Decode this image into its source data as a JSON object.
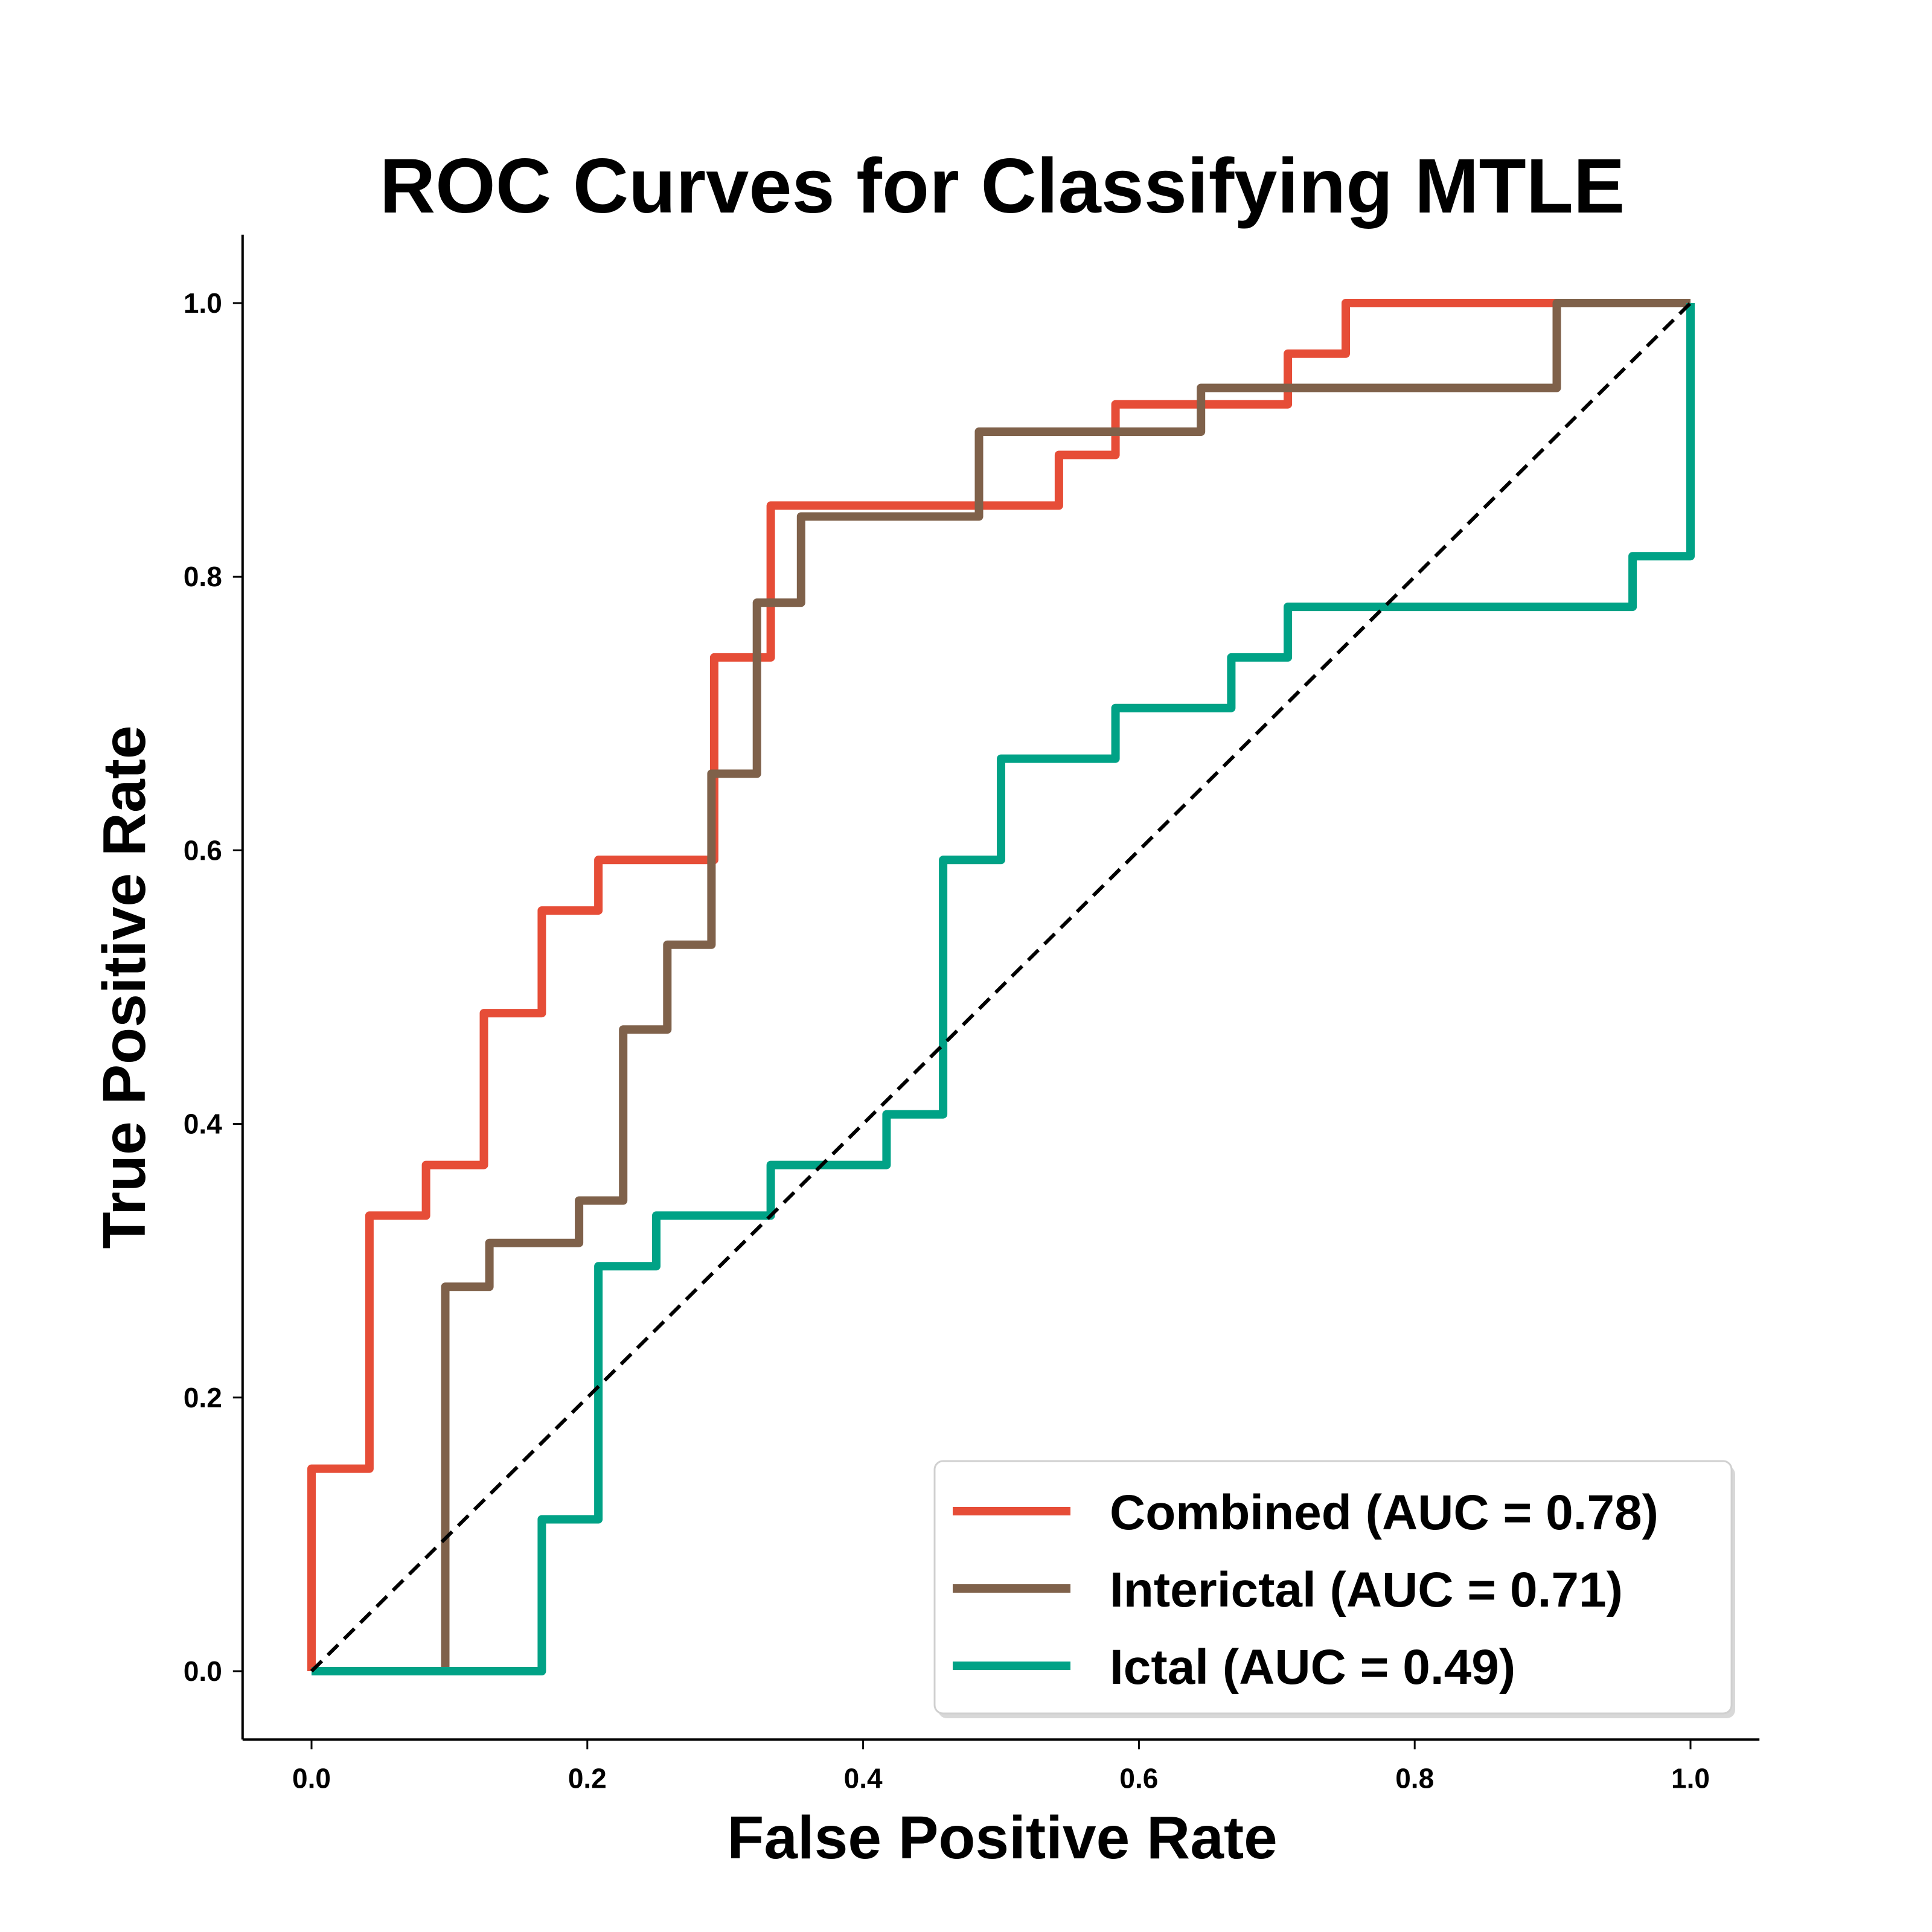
{
  "chart_data": {
    "type": "line",
    "title": "ROC Curves for Classifying MTLE",
    "xlabel": "False Positive Rate",
    "ylabel": "True Positive Rate",
    "xlim": [
      -0.05,
      1.05
    ],
    "ylim": [
      -0.05,
      1.05
    ],
    "xticks": [
      0.0,
      0.2,
      0.4,
      0.6,
      0.8,
      1.0
    ],
    "xtick_labels": [
      "0.0",
      "0.2",
      "0.4",
      "0.6",
      "0.8",
      "1.0"
    ],
    "yticks": [
      0.0,
      0.2,
      0.4,
      0.6,
      0.8,
      1.0
    ],
    "ytick_labels": [
      "0.0",
      "0.2",
      "0.4",
      "0.6",
      "0.8",
      "1.0"
    ],
    "grid": false,
    "legend_position": "bottom-right",
    "diagonal": {
      "x": [
        0,
        1
      ],
      "y": [
        0,
        1
      ],
      "color": "#000000",
      "style": "dashed"
    },
    "series": [
      {
        "name": "Combined (AUC = 0.78)",
        "color": "#e64d37",
        "x": [
          0.0,
          0.0,
          0.042,
          0.042,
          0.083,
          0.083,
          0.125,
          0.125,
          0.167,
          0.167,
          0.208,
          0.208,
          0.292,
          0.292,
          0.333,
          0.333,
          0.542,
          0.542,
          0.583,
          0.583,
          0.708,
          0.708,
          0.75,
          0.75,
          1.0
        ],
        "y": [
          0.0,
          0.148,
          0.148,
          0.333,
          0.333,
          0.37,
          0.37,
          0.481,
          0.481,
          0.556,
          0.556,
          0.593,
          0.593,
          0.741,
          0.741,
          0.852,
          0.852,
          0.889,
          0.889,
          0.926,
          0.926,
          0.963,
          0.963,
          1.0,
          1.0
        ]
      },
      {
        "name": "Interictal (AUC = 0.71)",
        "color": "#7f614a",
        "x": [
          0.0,
          0.097,
          0.097,
          0.129,
          0.129,
          0.194,
          0.194,
          0.226,
          0.226,
          0.258,
          0.258,
          0.29,
          0.29,
          0.323,
          0.323,
          0.355,
          0.355,
          0.484,
          0.484,
          0.645,
          0.645,
          0.903,
          0.903,
          1.0
        ],
        "y": [
          0.0,
          0.0,
          0.281,
          0.281,
          0.313,
          0.313,
          0.344,
          0.344,
          0.469,
          0.469,
          0.531,
          0.531,
          0.656,
          0.656,
          0.781,
          0.781,
          0.844,
          0.844,
          0.906,
          0.906,
          0.938,
          0.938,
          1.0,
          1.0
        ]
      },
      {
        "name": "Ictal (AUC = 0.49)",
        "color": "#00a286",
        "x": [
          0.0,
          0.167,
          0.167,
          0.208,
          0.208,
          0.25,
          0.25,
          0.333,
          0.333,
          0.417,
          0.417,
          0.458,
          0.458,
          0.5,
          0.5,
          0.583,
          0.583,
          0.667,
          0.667,
          0.708,
          0.708,
          0.958,
          0.958,
          1.0,
          1.0
        ],
        "y": [
          0.0,
          0.0,
          0.111,
          0.111,
          0.296,
          0.296,
          0.333,
          0.333,
          0.37,
          0.37,
          0.407,
          0.407,
          0.593,
          0.593,
          0.667,
          0.667,
          0.704,
          0.704,
          0.741,
          0.741,
          0.778,
          0.778,
          0.815,
          0.815,
          1.0
        ]
      }
    ]
  }
}
